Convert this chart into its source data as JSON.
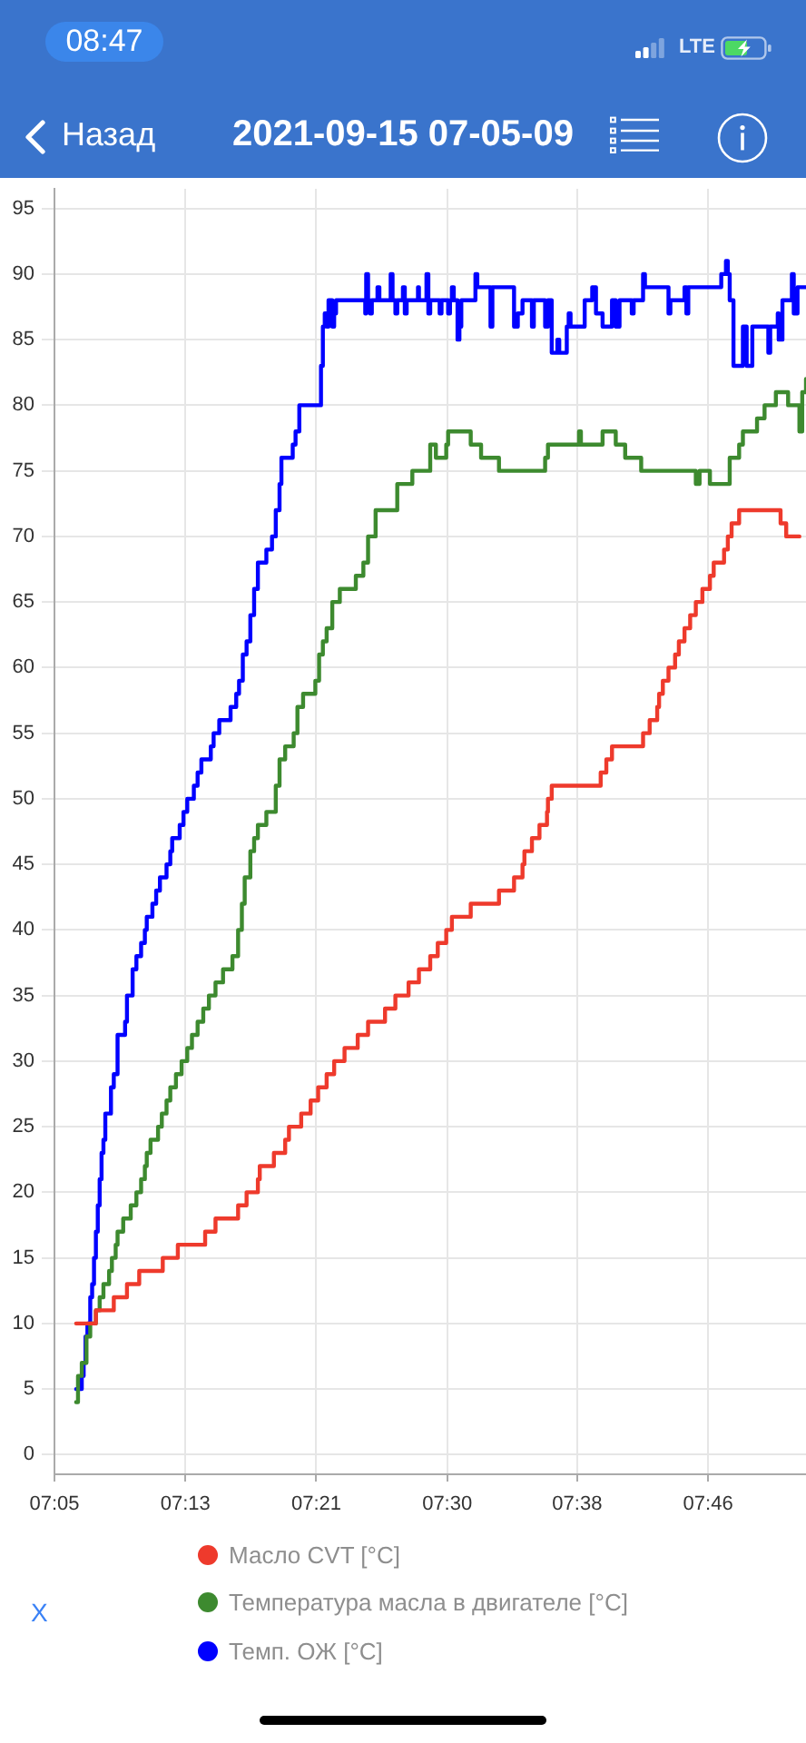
{
  "chart_data": {
    "type": "step",
    "title": "2021-09-15 07-05-09",
    "annotations": [
      "08:47",
      "LTE",
      "Назад",
      "X"
    ],
    "xlim": [
      7.078,
      7.876
    ],
    "xticks": [
      {
        "value": 7.078,
        "label": "07:05"
      },
      {
        "value": 7.217,
        "label": "07:13"
      },
      {
        "value": 7.356,
        "label": "07:21"
      },
      {
        "value": 7.495,
        "label": "07:30"
      },
      {
        "value": 7.633,
        "label": "07:38"
      },
      {
        "value": 7.772,
        "label": "07:46"
      }
    ],
    "ylim": [
      -1.5,
      96.5
    ],
    "yticks": [
      0,
      5,
      10,
      15,
      20,
      25,
      30,
      35,
      40,
      45,
      50,
      55,
      60,
      65,
      70,
      75,
      80,
      85,
      90,
      95
    ],
    "grid": true,
    "legend": "bottom",
    "series": [
      {
        "name": "Масло CVT [°C]",
        "color": "#ee3a2c",
        "x": [
          7.101,
          7.122,
          7.141,
          7.155,
          7.168,
          7.193,
          7.209,
          7.238,
          7.249,
          7.273,
          7.282,
          7.294,
          7.296,
          7.311,
          7.323,
          7.327,
          7.34,
          7.35,
          7.358,
          7.367,
          7.375,
          7.386,
          7.4,
          7.411,
          7.429,
          7.44,
          7.454,
          7.465,
          7.477,
          7.485,
          7.494,
          7.5,
          7.52,
          7.55,
          7.566,
          7.575,
          7.577,
          7.585,
          7.593,
          7.601,
          7.602,
          7.606,
          7.658,
          7.664,
          7.67,
          7.703,
          7.71,
          7.718,
          7.72,
          7.724,
          7.73,
          7.737,
          7.741,
          7.747,
          7.753,
          7.759,
          7.766,
          7.774,
          7.778,
          7.789,
          7.793,
          7.797,
          7.805,
          7.849,
          7.855,
          7.869
        ],
        "values": [
          10,
          11,
          12,
          13,
          14,
          15,
          16,
          17,
          18,
          19,
          20,
          21,
          22,
          23,
          24,
          25,
          26,
          27,
          28,
          29,
          30,
          31,
          32,
          33,
          34,
          35,
          36,
          37,
          38,
          39,
          40,
          41,
          42,
          43,
          44,
          45,
          46,
          47,
          48,
          49,
          50,
          51,
          52,
          53,
          54,
          55,
          56,
          57,
          58,
          59,
          60,
          61,
          62,
          63,
          64,
          65,
          66,
          67,
          68,
          69,
          70,
          71,
          72,
          71,
          70,
          70
        ]
      },
      {
        "name": "Температура масла в двигателе [°C]",
        "color": "#3d8a2f",
        "x": [
          7.101,
          7.103,
          7.107,
          7.112,
          7.116,
          7.122,
          7.126,
          7.13,
          7.136,
          7.139,
          7.143,
          7.145,
          7.151,
          7.159,
          7.165,
          7.17,
          7.174,
          7.176,
          7.18,
          7.188,
          7.192,
          7.197,
          7.201,
          7.207,
          7.213,
          7.219,
          7.224,
          7.23,
          7.236,
          7.242,
          7.249,
          7.257,
          7.267,
          7.273,
          7.277,
          7.28,
          7.286,
          7.29,
          7.294,
          7.303,
          7.313,
          7.317,
          7.323,
          7.332,
          7.336,
          7.342,
          7.355,
          7.359,
          7.363,
          7.367,
          7.373,
          7.381,
          7.398,
          7.406,
          7.411,
          7.419,
          7.442,
          7.458,
          7.477,
          7.483,
          7.494,
          7.496,
          7.52,
          7.531,
          7.55,
          7.599,
          7.602,
          7.635,
          7.637,
          7.66,
          7.674,
          7.684,
          7.701,
          7.759,
          7.763,
          7.774,
          7.795,
          7.805,
          7.809,
          7.824,
          7.832,
          7.844,
          7.857,
          7.869,
          7.872,
          7.876
        ],
        "values": [
          4,
          6,
          7,
          9,
          10,
          11,
          12,
          13,
          14,
          15,
          16,
          17,
          18,
          19,
          20,
          21,
          22,
          23,
          24,
          25,
          26,
          27,
          28,
          29,
          30,
          31,
          32,
          33,
          34,
          35,
          36,
          37,
          38,
          40,
          42,
          44,
          46,
          47,
          48,
          49,
          51,
          53,
          54,
          55,
          57,
          58,
          59,
          61,
          62,
          63,
          65,
          66,
          67,
          68,
          70,
          72,
          74,
          75,
          77,
          76,
          77,
          78,
          77,
          76,
          75,
          76,
          77,
          78,
          77,
          78,
          77,
          76,
          75,
          74,
          75,
          74,
          76,
          77,
          78,
          79,
          80,
          81,
          80,
          78,
          81,
          82
        ]
      },
      {
        "name": "Темп. ОЖ [°C]",
        "color": "#0000ff",
        "x": [
          7.101,
          7.107,
          7.109,
          7.111,
          7.113,
          7.116,
          7.118,
          7.12,
          7.122,
          7.124,
          7.126,
          7.128,
          7.13,
          7.132,
          7.138,
          7.141,
          7.145,
          7.153,
          7.155,
          7.161,
          7.165,
          7.17,
          7.174,
          7.176,
          7.182,
          7.186,
          7.19,
          7.197,
          7.201,
          7.203,
          7.211,
          7.215,
          7.219,
          7.226,
          7.23,
          7.234,
          7.244,
          7.247,
          7.253,
          7.265,
          7.271,
          7.274,
          7.278,
          7.282,
          7.286,
          7.29,
          7.294,
          7.303,
          7.309,
          7.313,
          7.317,
          7.319,
          7.331,
          7.334,
          7.338,
          7.361,
          7.363,
          7.365,
          7.367,
          7.369,
          7.373,
          7.375,
          7.377,
          7.408,
          7.409,
          7.411,
          7.413,
          7.415,
          7.421,
          7.423,
          7.435,
          7.437,
          7.44,
          7.442,
          7.448,
          7.45,
          7.452,
          7.464,
          7.465,
          7.473,
          7.475,
          7.477,
          7.487,
          7.489,
          7.496,
          7.498,
          7.5,
          7.502,
          7.506,
          7.508,
          7.51,
          7.525,
          7.527,
          7.541,
          7.543,
          7.566,
          7.57,
          7.575,
          7.585,
          7.587,
          7.599,
          7.602,
          7.606,
          7.612,
          7.614,
          7.622,
          7.624,
          7.626,
          7.641,
          7.649,
          7.653,
          7.66,
          7.67,
          7.674,
          7.678,
          7.691,
          7.693,
          7.703,
          7.705,
          7.73,
          7.732,
          7.747,
          7.749,
          7.751,
          7.786,
          7.791,
          7.793,
          7.795,
          7.799,
          7.809,
          7.813,
          7.819,
          7.836,
          7.838,
          7.846,
          7.847,
          7.851,
          7.861,
          7.863,
          7.867,
          7.876
        ],
        "values": [
          5,
          6,
          7,
          9,
          10,
          12,
          13,
          15,
          17,
          19,
          21,
          23,
          24,
          26,
          28,
          29,
          32,
          33,
          35,
          37,
          38,
          39,
          40,
          41,
          42,
          43,
          44,
          45,
          46,
          47,
          48,
          49,
          50,
          51,
          52,
          53,
          54,
          55,
          56,
          57,
          58,
          59,
          61,
          62,
          64,
          66,
          68,
          69,
          70,
          72,
          74,
          76,
          77,
          78,
          80,
          83,
          86,
          87,
          86,
          88,
          86,
          87,
          88,
          87,
          90,
          88,
          87,
          88,
          89,
          88,
          90,
          88,
          87,
          88,
          89,
          87,
          88,
          89,
          88,
          90,
          87,
          88,
          87,
          88,
          87,
          88,
          89,
          88,
          85,
          86,
          88,
          90,
          89,
          86,
          89,
          86,
          87,
          88,
          86,
          88,
          86,
          88,
          84,
          85,
          84,
          86,
          87,
          86,
          88,
          89,
          87,
          86,
          88,
          86,
          88,
          87,
          88,
          90,
          89,
          87,
          88,
          89,
          87,
          89,
          90,
          91,
          90,
          88,
          83,
          86,
          83,
          86,
          84,
          86,
          87,
          85,
          88,
          90,
          87,
          89,
          89
        ]
      }
    ]
  }
}
